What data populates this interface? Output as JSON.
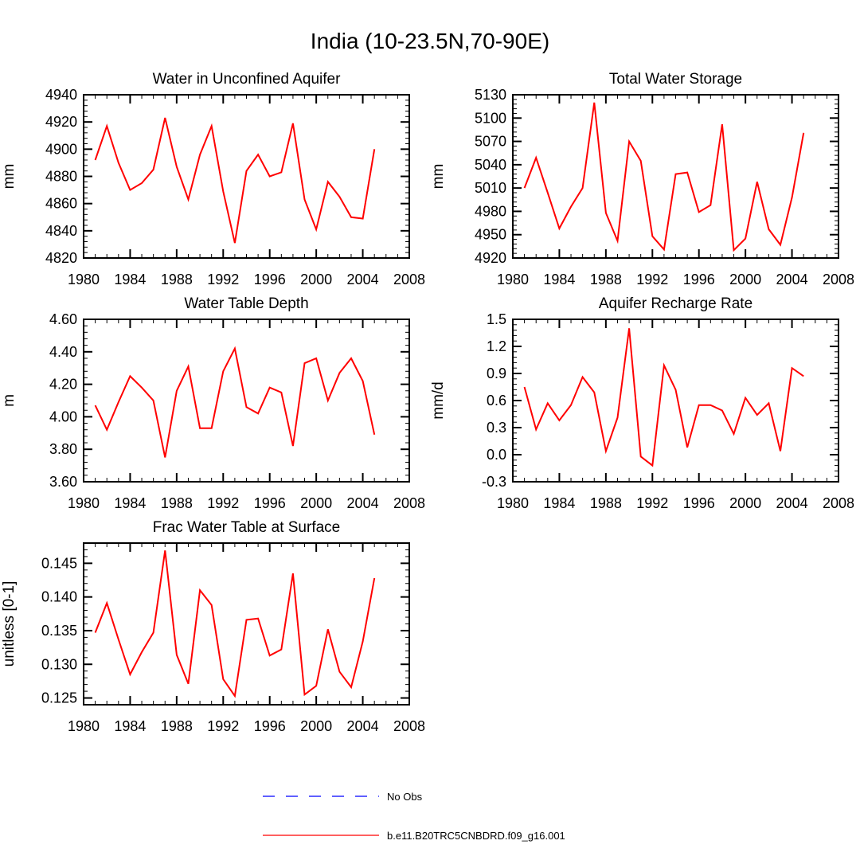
{
  "figure": {
    "title": "India (10-23.5N,70-90E)",
    "colors": {
      "model": "#ff0000",
      "obs": "#0000ff",
      "axis": "#000000"
    }
  },
  "chart_data": [
    {
      "type": "line",
      "title": "Water in Unconfined Aquifer",
      "xlabel": "",
      "ylabel": "mm",
      "xlim": [
        1980,
        2008
      ],
      "ylim": [
        4820,
        4940
      ],
      "xticks": [
        1980,
        1984,
        1988,
        1992,
        1996,
        2000,
        2004,
        2008
      ],
      "xtick_labels": [
        "1980",
        "1984",
        "1988",
        "1992",
        "1996",
        "2000",
        "2004",
        "2008"
      ],
      "yticks": [
        4820,
        4840,
        4860,
        4880,
        4900,
        4920,
        4940
      ],
      "ytick_labels": [
        "4820",
        "4840",
        "4860",
        "4880",
        "4900",
        "4920",
        "4940"
      ],
      "series": [
        {
          "name": "b.e11.B20TRC5CNBDRD.f09_g16.001",
          "x": [
            1981,
            1982,
            1983,
            1984,
            1985,
            1986,
            1987,
            1988,
            1989,
            1990,
            1991,
            1992,
            1993,
            1994,
            1995,
            1996,
            1997,
            1998,
            1999,
            2000,
            2001,
            2002,
            2003,
            2004,
            2005
          ],
          "values": [
            4892,
            4917,
            4890,
            4870,
            4875,
            4885,
            4923,
            4887,
            4863,
            4896,
            4917,
            4869,
            4831,
            4884,
            4896,
            4880,
            4883,
            4919,
            4863,
            4841,
            4876,
            4865,
            4850,
            4849,
            4900
          ]
        }
      ]
    },
    {
      "type": "line",
      "title": "Total Water Storage",
      "xlabel": "",
      "ylabel": "mm",
      "xlim": [
        1980,
        2008
      ],
      "ylim": [
        4920,
        5130
      ],
      "xticks": [
        1980,
        1984,
        1988,
        1992,
        1996,
        2000,
        2004,
        2008
      ],
      "xtick_labels": [
        "1980",
        "1984",
        "1988",
        "1992",
        "1996",
        "2000",
        "2004",
        "2008"
      ],
      "yticks": [
        4920,
        4950,
        4980,
        5010,
        5040,
        5070,
        5100,
        5130
      ],
      "ytick_labels": [
        "4920",
        "4950",
        "4980",
        "5010",
        "5040",
        "5070",
        "5100",
        "5130"
      ],
      "series": [
        {
          "name": "b.e11.B20TRC5CNBDRD.f09_g16.001",
          "x": [
            1981,
            1982,
            1983,
            1984,
            1985,
            1986,
            1987,
            1988,
            1989,
            1990,
            1991,
            1992,
            1993,
            1994,
            1995,
            1996,
            1997,
            1998,
            1999,
            2000,
            2001,
            2002,
            2003,
            2004,
            2005
          ],
          "values": [
            5010,
            5049,
            5004,
            4958,
            4986,
            5010,
            5120,
            4978,
            4942,
            5070,
            5045,
            4948,
            4931,
            5028,
            5030,
            4979,
            4988,
            5092,
            4930,
            4945,
            5018,
            4957,
            4937,
            4998,
            5081
          ]
        }
      ]
    },
    {
      "type": "line",
      "title": "Water Table Depth",
      "xlabel": "",
      "ylabel": "m",
      "xlim": [
        1980,
        2008
      ],
      "ylim": [
        3.6,
        4.6
      ],
      "xticks": [
        1980,
        1984,
        1988,
        1992,
        1996,
        2000,
        2004,
        2008
      ],
      "xtick_labels": [
        "1980",
        "1984",
        "1988",
        "1992",
        "1996",
        "2000",
        "2004",
        "2008"
      ],
      "yticks": [
        3.6,
        3.8,
        4.0,
        4.2,
        4.4,
        4.6
      ],
      "ytick_labels": [
        "3.60",
        "3.80",
        "4.00",
        "4.20",
        "4.40",
        "4.60"
      ],
      "series": [
        {
          "name": "b.e11.B20TRC5CNBDRD.f09_g16.001",
          "x": [
            1981,
            1982,
            1983,
            1984,
            1985,
            1986,
            1987,
            1988,
            1989,
            1990,
            1991,
            1992,
            1993,
            1994,
            1995,
            1996,
            1997,
            1998,
            1999,
            2000,
            2001,
            2002,
            2003,
            2004,
            2005
          ],
          "values": [
            4.07,
            3.92,
            4.09,
            4.25,
            4.18,
            4.1,
            3.75,
            4.16,
            4.31,
            3.93,
            3.93,
            4.28,
            4.42,
            4.06,
            4.02,
            4.18,
            4.15,
            3.82,
            4.33,
            4.36,
            4.1,
            4.27,
            4.36,
            4.22,
            3.89
          ]
        }
      ]
    },
    {
      "type": "line",
      "title": "Aquifer Recharge Rate",
      "xlabel": "",
      "ylabel": "mm/d",
      "xlim": [
        1980,
        2008
      ],
      "ylim": [
        -0.3,
        1.5
      ],
      "xticks": [
        1980,
        1984,
        1988,
        1992,
        1996,
        2000,
        2004,
        2008
      ],
      "xtick_labels": [
        "1980",
        "1984",
        "1988",
        "1992",
        "1996",
        "2000",
        "2004",
        "2008"
      ],
      "yticks": [
        -0.3,
        0.0,
        0.3,
        0.6,
        0.9,
        1.2,
        1.5
      ],
      "ytick_labels": [
        "-0.3",
        "0.0",
        "0.3",
        "0.6",
        "0.9",
        "1.2",
        "1.5"
      ],
      "series": [
        {
          "name": "b.e11.B20TRC5CNBDRD.f09_g16.001",
          "x": [
            1981,
            1982,
            1983,
            1984,
            1985,
            1986,
            1987,
            1988,
            1989,
            1990,
            1991,
            1992,
            1993,
            1994,
            1995,
            1996,
            1997,
            1998,
            1999,
            2000,
            2001,
            2002,
            2003,
            2004,
            2005
          ],
          "values": [
            0.75,
            0.28,
            0.57,
            0.38,
            0.55,
            0.86,
            0.69,
            0.04,
            0.41,
            1.4,
            -0.02,
            -0.12,
            0.99,
            0.72,
            0.08,
            0.55,
            0.55,
            0.49,
            0.23,
            0.63,
            0.44,
            0.57,
            0.04,
            0.96,
            0.87
          ]
        }
      ]
    },
    {
      "type": "line",
      "title": "Frac Water Table at Surface",
      "xlabel": "",
      "ylabel": "unitless [0-1]",
      "xlim": [
        1980,
        2008
      ],
      "ylim": [
        0.124,
        0.148
      ],
      "xticks": [
        1980,
        1984,
        1988,
        1992,
        1996,
        2000,
        2004,
        2008
      ],
      "xtick_labels": [
        "1980",
        "1984",
        "1988",
        "1992",
        "1996",
        "2000",
        "2004",
        "2008"
      ],
      "yticks": [
        0.125,
        0.13,
        0.135,
        0.14,
        0.145
      ],
      "ytick_labels": [
        "0.125",
        "0.130",
        "0.135",
        "0.140",
        "0.145"
      ],
      "series": [
        {
          "name": "b.e11.B20TRC5CNBDRD.f09_g16.001",
          "x": [
            1981,
            1982,
            1983,
            1984,
            1985,
            1986,
            1987,
            1988,
            1989,
            1990,
            1991,
            1992,
            1993,
            1994,
            1995,
            1996,
            1997,
            1998,
            1999,
            2000,
            2001,
            2002,
            2003,
            2004,
            2005
          ],
          "values": [
            0.1347,
            0.1391,
            0.1337,
            0.1285,
            0.1318,
            0.1347,
            0.1469,
            0.1314,
            0.1271,
            0.141,
            0.1388,
            0.1278,
            0.1253,
            0.1366,
            0.1368,
            0.1313,
            0.1322,
            0.1435,
            0.1255,
            0.1268,
            0.1352,
            0.1289,
            0.1266,
            0.1334,
            0.1428
          ]
        }
      ]
    }
  ],
  "legend": {
    "items": [
      {
        "label": "No Obs",
        "style": "dashed",
        "color": "#0000ff"
      },
      {
        "label": "b.e11.B20TRC5CNBDRD.f09_g16.001",
        "style": "solid",
        "color": "#ff0000"
      }
    ]
  }
}
